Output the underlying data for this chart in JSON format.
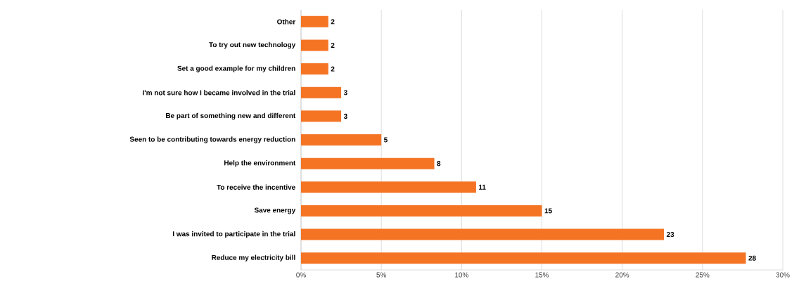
{
  "chart_data": {
    "type": "bar",
    "orientation": "horizontal",
    "categories": [
      "Other",
      "To try out new technology",
      "Set a good example for my children",
      "I'm not sure how I became involved in the trial",
      "Be part of something new and different",
      "Seen to be contributing towards energy reduction",
      "Help the environment",
      "To receive the incentive",
      "Save energy",
      "I was invited to participate in the trial",
      "Reduce my electricity bill"
    ],
    "values": [
      1.7,
      1.7,
      1.7,
      2.5,
      2.5,
      5.0,
      8.3,
      10.9,
      15.0,
      22.6,
      27.7
    ],
    "value_labels": [
      "2",
      "2",
      "2",
      "3",
      "3",
      "5",
      "8",
      "11",
      "15",
      "23",
      "28"
    ],
    "color": "#f47424",
    "xlim": [
      0,
      30
    ],
    "xticks": [
      {
        "value": 0,
        "label": "0%"
      },
      {
        "value": 5,
        "label": "5%"
      },
      {
        "value": 10,
        "label": "10%"
      },
      {
        "value": 15,
        "label": "15%"
      },
      {
        "value": 20,
        "label": "20%"
      },
      {
        "value": 25,
        "label": "25%"
      },
      {
        "value": 30,
        "label": "30%"
      }
    ],
    "grid": "x"
  }
}
